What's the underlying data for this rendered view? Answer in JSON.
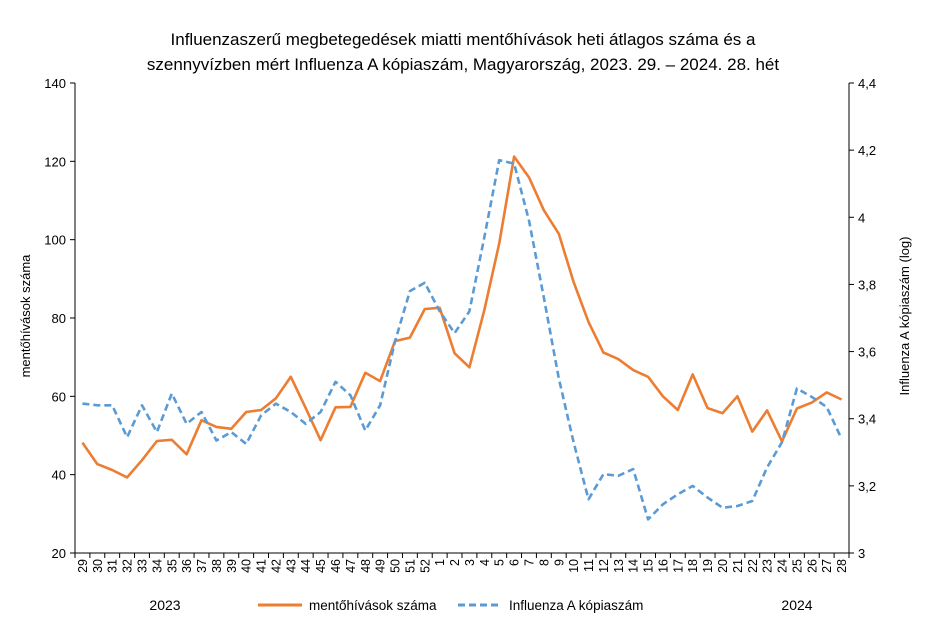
{
  "chart_data": {
    "type": "line",
    "title_lines": [
      "Influenzaszerű megbetegedések miatti mentőhívások heti átlagos száma és a",
      "szennyvízben mért Influenza A kópiaszám, Magyarország, 2023. 29. – 2024. 28. hét"
    ],
    "categories": [
      "29",
      "30",
      "31",
      "32",
      "33",
      "34",
      "35",
      "36",
      "37",
      "38",
      "39",
      "40",
      "41",
      "42",
      "43",
      "44",
      "45",
      "46",
      "47",
      "48",
      "49",
      "50",
      "51",
      "52",
      "1",
      "2",
      "3",
      "4",
      "5",
      "6",
      "7",
      "8",
      "9",
      "10",
      "11",
      "12",
      "13",
      "14",
      "15",
      "16",
      "17",
      "18",
      "19",
      "20",
      "21",
      "22",
      "23",
      "24",
      "25",
      "26",
      "27",
      "28"
    ],
    "year_labels": [
      "2023",
      "2024"
    ],
    "ylabel_left": "mentőhívások száma",
    "ylabel_right": "Influenza A kópiaszám (log)",
    "ylim_left": [
      20,
      140
    ],
    "yticks_left": [
      "20",
      "40",
      "60",
      "80",
      "100",
      "120",
      "140"
    ],
    "ylim_right": [
      3,
      4.4
    ],
    "yticks_right": [
      "3",
      "3,2",
      "3,4",
      "3,6",
      "3,8",
      "4",
      "4,2",
      "4,4"
    ],
    "series": [
      {
        "name": "mentőhívások száma",
        "axis": "left",
        "color": "#ED7D31",
        "style": "solid",
        "values": [
          48.2,
          42.7,
          41.2,
          39.3,
          43.7,
          48.6,
          48.9,
          45.2,
          53.9,
          52.2,
          51.7,
          56.0,
          56.5,
          59.5,
          65.0,
          57.0,
          48.8,
          57.2,
          57.3,
          66.0,
          63.9,
          74.1,
          75.0,
          82.3,
          82.6,
          71.0,
          67.4,
          82.0,
          99.0,
          121.2,
          115.9,
          107.5,
          101.5,
          89.2,
          79.0,
          71.2,
          69.5,
          66.7,
          65.0,
          60.0,
          56.5,
          65.6,
          57.0,
          55.7,
          60.0,
          51.0,
          56.4,
          48.5,
          56.9,
          58.4,
          61.0,
          59.2
        ]
      },
      {
        "name": "Influenza A kópiaszám",
        "axis": "right",
        "color": "#5B9BD5",
        "style": "dashed",
        "values": [
          3.445,
          3.44,
          3.44,
          3.345,
          3.44,
          3.36,
          3.475,
          3.385,
          3.42,
          3.335,
          3.36,
          3.325,
          3.41,
          3.445,
          3.42,
          3.385,
          3.42,
          3.51,
          3.47,
          3.365,
          3.44,
          3.63,
          3.78,
          3.805,
          3.72,
          3.655,
          3.72,
          3.94,
          4.17,
          4.16,
          3.99,
          3.76,
          3.52,
          3.33,
          3.16,
          3.235,
          3.23,
          3.25,
          3.1,
          3.145,
          3.175,
          3.2,
          3.165,
          3.135,
          3.14,
          3.155,
          3.255,
          3.33,
          3.49,
          3.465,
          3.435,
          3.34
        ]
      }
    ],
    "grid": false,
    "legend_position": "bottom"
  }
}
